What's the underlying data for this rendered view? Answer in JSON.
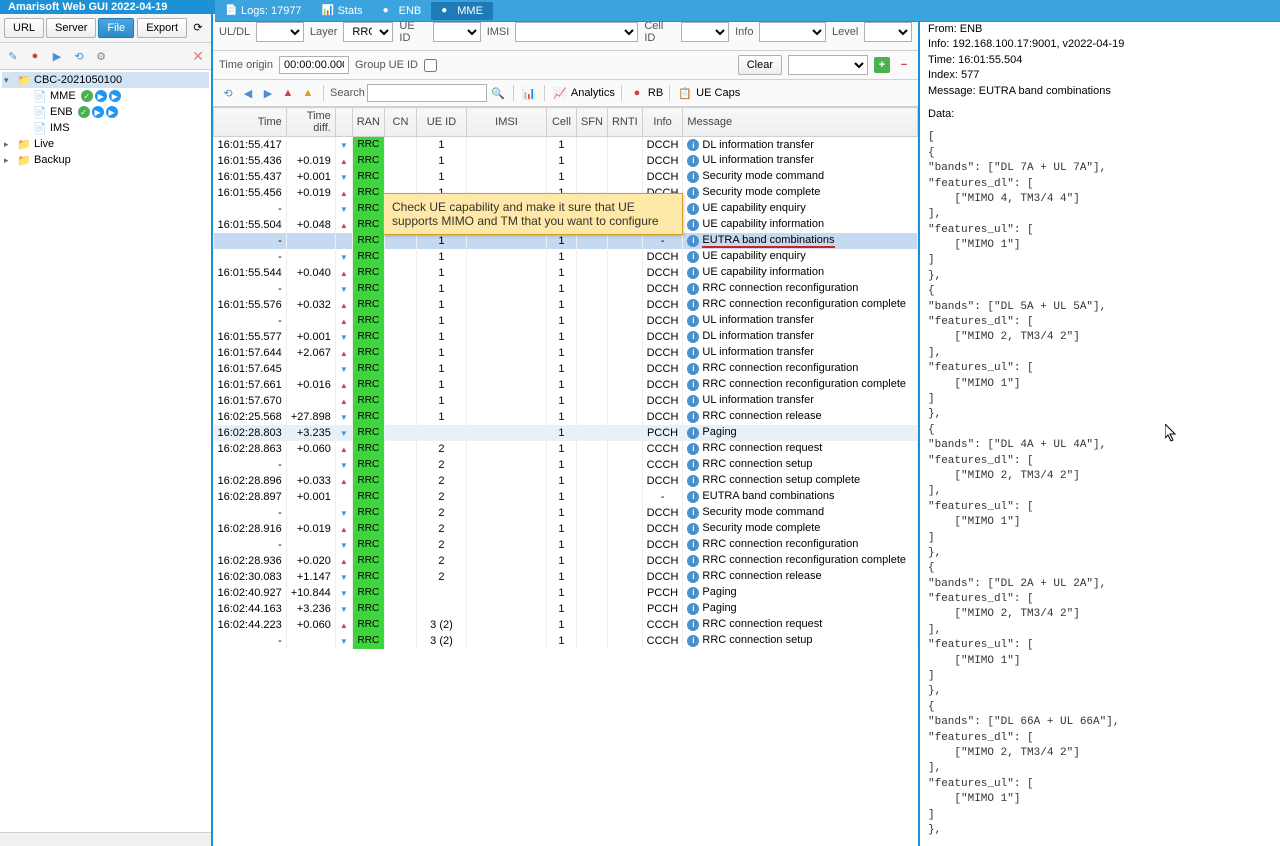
{
  "title": "Amarisoft Web GUI 2022-04-19",
  "tabs": [
    {
      "label": "Logs: 17977",
      "icon": "logs"
    },
    {
      "label": "Stats",
      "icon": "stats"
    },
    {
      "label": "ENB",
      "icon": "enb"
    },
    {
      "label": "MME",
      "icon": "mme",
      "active": true
    }
  ],
  "sidebar": {
    "buttons": {
      "url": "URL",
      "server": "Server",
      "file": "File",
      "export": "Export"
    },
    "tree": [
      {
        "label": "CBC-2021050100",
        "indent": 0,
        "icon": "folder",
        "expanded": true,
        "selected": true
      },
      {
        "label": "MME",
        "indent": 1,
        "icon": "file",
        "badges": [
          "green",
          "blue",
          "blue"
        ]
      },
      {
        "label": "ENB",
        "indent": 1,
        "icon": "file",
        "badges": [
          "green",
          "blue",
          "blue"
        ]
      },
      {
        "label": "IMS",
        "indent": 1,
        "icon": "file"
      },
      {
        "label": "Live",
        "indent": 0,
        "icon": "folder"
      },
      {
        "label": "Backup",
        "indent": 0,
        "icon": "folder"
      }
    ]
  },
  "filters": {
    "uldl": {
      "label": "UL/DL",
      "value": ""
    },
    "layer": {
      "label": "Layer",
      "value": "RRC"
    },
    "ueid": {
      "label": "UE ID",
      "value": ""
    },
    "imsi": {
      "label": "IMSI",
      "value": ""
    },
    "cellid": {
      "label": "Cell ID",
      "value": ""
    },
    "info": {
      "label": "Info",
      "value": ""
    },
    "level": {
      "label": "Level",
      "value": ""
    },
    "time_origin": {
      "label": "Time origin",
      "value": "00:00:00.000"
    },
    "group_ueid": {
      "label": "Group UE ID"
    },
    "clear": "Clear",
    "search": {
      "label": "Search",
      "value": ""
    },
    "analytics": "Analytics",
    "rb": "RB",
    "ue_caps": "UE Caps"
  },
  "columns": [
    "Time",
    "Time diff.",
    "",
    "RAN",
    "CN",
    "UE ID",
    "IMSI",
    "Cell",
    "SFN",
    "RNTI",
    "Info",
    "Message"
  ],
  "rows": [
    {
      "time": "16:01:55.417",
      "diff": "",
      "dir": "dl",
      "ran": "RRC",
      "ue": "1",
      "cell": "1",
      "info": "DCCH",
      "msg": "DL information transfer"
    },
    {
      "time": "16:01:55.436",
      "diff": "+0.019",
      "dir": "ul",
      "ran": "RRC",
      "ue": "1",
      "cell": "1",
      "info": "DCCH",
      "msg": "UL information transfer"
    },
    {
      "time": "16:01:55.437",
      "diff": "+0.001",
      "dir": "dl",
      "ran": "RRC",
      "ue": "1",
      "cell": "1",
      "info": "DCCH",
      "msg": "Security mode command"
    },
    {
      "time": "16:01:55.456",
      "diff": "+0.019",
      "dir": "ul",
      "ran": "RRC",
      "ue": "1",
      "cell": "1",
      "info": "DCCH",
      "msg": "Security mode complete"
    },
    {
      "time": "-",
      "diff": "",
      "dir": "dl",
      "ran": "RRC",
      "ue": "1",
      "cell": "1",
      "info": "DCCH",
      "msg": "UE capability enquiry"
    },
    {
      "time": "16:01:55.504",
      "diff": "+0.048",
      "dir": "ul",
      "ran": "RRC",
      "ue": "1",
      "cell": "1",
      "info": "DCCH",
      "msg": "UE capability information"
    },
    {
      "time": "-",
      "diff": "",
      "dir": "",
      "ran": "RRC",
      "ue": "1",
      "cell": "1",
      "info": "-",
      "msg": "EUTRA band combinations",
      "selected": true,
      "underline": true
    },
    {
      "time": "-",
      "diff": "",
      "dir": "dl",
      "ran": "RRC",
      "ue": "1",
      "cell": "1",
      "info": "DCCH",
      "msg": "UE capability enquiry"
    },
    {
      "time": "16:01:55.544",
      "diff": "+0.040",
      "dir": "ul",
      "ran": "RRC",
      "ue": "1",
      "cell": "1",
      "info": "DCCH",
      "msg": "UE capability information"
    },
    {
      "time": "-",
      "diff": "",
      "dir": "dl",
      "ran": "RRC",
      "ue": "1",
      "cell": "1",
      "info": "DCCH",
      "msg": "RRC connection reconfiguration"
    },
    {
      "time": "16:01:55.576",
      "diff": "+0.032",
      "dir": "ul",
      "ran": "RRC",
      "ue": "1",
      "cell": "1",
      "info": "DCCH",
      "msg": "RRC connection reconfiguration complete"
    },
    {
      "time": "-",
      "diff": "",
      "dir": "ul",
      "ran": "RRC",
      "ue": "1",
      "cell": "1",
      "info": "DCCH",
      "msg": "UL information transfer"
    },
    {
      "time": "16:01:55.577",
      "diff": "+0.001",
      "dir": "dl",
      "ran": "RRC",
      "ue": "1",
      "cell": "1",
      "info": "DCCH",
      "msg": "DL information transfer"
    },
    {
      "time": "16:01:57.644",
      "diff": "+2.067",
      "dir": "ul",
      "ran": "RRC",
      "ue": "1",
      "cell": "1",
      "info": "DCCH",
      "msg": "UL information transfer"
    },
    {
      "time": "16:01:57.645",
      "diff": "",
      "dir": "dl",
      "ran": "RRC",
      "ue": "1",
      "cell": "1",
      "info": "DCCH",
      "msg": "RRC connection reconfiguration"
    },
    {
      "time": "16:01:57.661",
      "diff": "+0.016",
      "dir": "ul",
      "ran": "RRC",
      "ue": "1",
      "cell": "1",
      "info": "DCCH",
      "msg": "RRC connection reconfiguration complete"
    },
    {
      "time": "16:01:57.670",
      "diff": "",
      "dir": "ul",
      "ran": "RRC",
      "ue": "1",
      "cell": "1",
      "info": "DCCH",
      "msg": "UL information transfer"
    },
    {
      "time": "16:02:25.568",
      "diff": "+27.898",
      "dir": "dl",
      "ran": "RRC",
      "ue": "1",
      "cell": "1",
      "info": "DCCH",
      "msg": "RRC connection release"
    },
    {
      "time": "16:02:28.803",
      "diff": "+3.235",
      "dir": "dl",
      "ran": "RRC",
      "ue": "",
      "cell": "1",
      "info": "PCCH",
      "msg": "Paging",
      "hovered": true
    },
    {
      "time": "16:02:28.863",
      "diff": "+0.060",
      "dir": "ul",
      "ran": "RRC",
      "ue": "2",
      "cell": "1",
      "info": "CCCH",
      "msg": "RRC connection request"
    },
    {
      "time": "-",
      "diff": "",
      "dir": "dl",
      "ran": "RRC",
      "ue": "2",
      "cell": "1",
      "info": "CCCH",
      "msg": "RRC connection setup"
    },
    {
      "time": "16:02:28.896",
      "diff": "+0.033",
      "dir": "ul",
      "ran": "RRC",
      "ue": "2",
      "cell": "1",
      "info": "DCCH",
      "msg": "RRC connection setup complete"
    },
    {
      "time": "16:02:28.897",
      "diff": "+0.001",
      "dir": "",
      "ran": "RRC",
      "ue": "2",
      "cell": "1",
      "info": "-",
      "msg": "EUTRA band combinations"
    },
    {
      "time": "-",
      "diff": "",
      "dir": "dl",
      "ran": "RRC",
      "ue": "2",
      "cell": "1",
      "info": "DCCH",
      "msg": "Security mode command"
    },
    {
      "time": "16:02:28.916",
      "diff": "+0.019",
      "dir": "ul",
      "ran": "RRC",
      "ue": "2",
      "cell": "1",
      "info": "DCCH",
      "msg": "Security mode complete"
    },
    {
      "time": "-",
      "diff": "",
      "dir": "dl",
      "ran": "RRC",
      "ue": "2",
      "cell": "1",
      "info": "DCCH",
      "msg": "RRC connection reconfiguration"
    },
    {
      "time": "16:02:28.936",
      "diff": "+0.020",
      "dir": "ul",
      "ran": "RRC",
      "ue": "2",
      "cell": "1",
      "info": "DCCH",
      "msg": "RRC connection reconfiguration complete"
    },
    {
      "time": "16:02:30.083",
      "diff": "+1.147",
      "dir": "dl",
      "ran": "RRC",
      "ue": "2",
      "cell": "1",
      "info": "DCCH",
      "msg": "RRC connection release"
    },
    {
      "time": "16:02:40.927",
      "diff": "+10.844",
      "dir": "dl",
      "ran": "RRC",
      "ue": "",
      "cell": "1",
      "info": "PCCH",
      "msg": "Paging"
    },
    {
      "time": "16:02:44.163",
      "diff": "+3.236",
      "dir": "dl",
      "ran": "RRC",
      "ue": "",
      "cell": "1",
      "info": "PCCH",
      "msg": "Paging"
    },
    {
      "time": "16:02:44.223",
      "diff": "+0.060",
      "dir": "ul",
      "ran": "RRC",
      "ue": "3 (2)",
      "cell": "1",
      "info": "CCCH",
      "msg": "RRC connection request"
    },
    {
      "time": "-",
      "diff": "",
      "dir": "dl",
      "ran": "RRC",
      "ue": "3 (2)",
      "cell": "1",
      "info": "CCCH",
      "msg": "RRC connection setup"
    }
  ],
  "detail": {
    "from": "From: ENB",
    "info": "Info: 192.168.100.17:9001, v2022-04-19",
    "time": "Time: 16:01:55.504",
    "index": "Index: 577",
    "message": "Message: EUTRA band combinations",
    "data_label": "Data:",
    "data": "[\n{\n\"bands\": [\"DL 7A + UL 7A\"],\n\"features_dl\": [\n    [\"MIMO 4, TM3/4 4\"]\n],\n\"features_ul\": [\n    [\"MIMO 1\"]\n]\n},\n{\n\"bands\": [\"DL 5A + UL 5A\"],\n\"features_dl\": [\n    [\"MIMO 2, TM3/4 2\"]\n],\n\"features_ul\": [\n    [\"MIMO 1\"]\n]\n},\n{\n\"bands\": [\"DL 4A + UL 4A\"],\n\"features_dl\": [\n    [\"MIMO 2, TM3/4 2\"]\n],\n\"features_ul\": [\n    [\"MIMO 1\"]\n]\n},\n{\n\"bands\": [\"DL 2A + UL 2A\"],\n\"features_dl\": [\n    [\"MIMO 2, TM3/4 2\"]\n],\n\"features_ul\": [\n    [\"MIMO 1\"]\n]\n},\n{\n\"bands\": [\"DL 66A + UL 66A\"],\n\"features_dl\": [\n    [\"MIMO 2, TM3/4 2\"]\n],\n\"features_ul\": [\n    [\"MIMO 1\"]\n]\n},"
  },
  "callout": "Check UE capability and make it sure that UE supports MIMO and TM that you want to configure",
  "colors": {
    "primary": "#1e90d6",
    "rrc_bg": "#3dd43d",
    "callout_bg": "#ffe9a8",
    "selected_row": "#c5d9f0"
  }
}
